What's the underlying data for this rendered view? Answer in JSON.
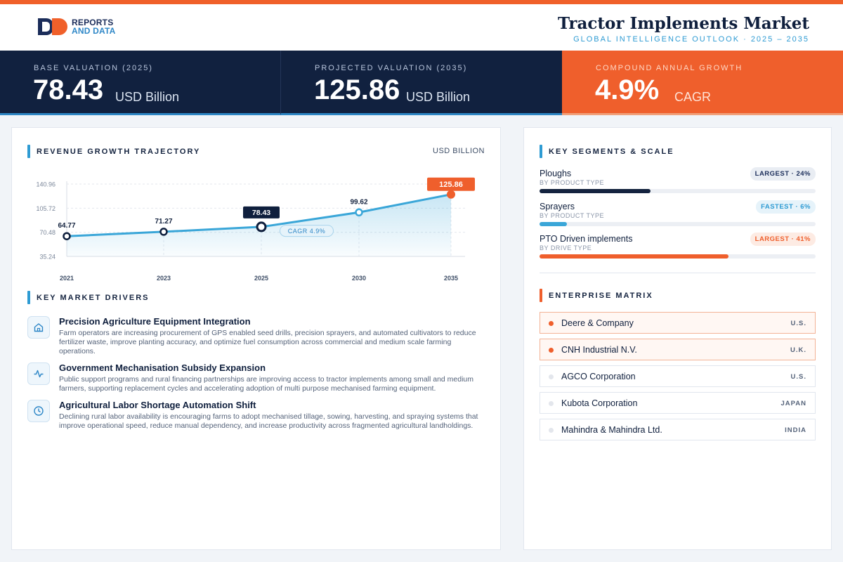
{
  "brand": {
    "line1": "REPORTS",
    "line2": "AND DATA"
  },
  "header": {
    "title": "Tractor Implements Market",
    "subtitle": "GLOBAL INTELLIGENCE OUTLOOK  ·  2025 – 2035"
  },
  "kpis": [
    {
      "label": "BASE VALUATION (2025)",
      "value": "78.43",
      "unit": "USD Billion"
    },
    {
      "label": "PROJECTED VALUATION (2035)",
      "value": "125.86",
      "unit": "USD Billion"
    },
    {
      "label": "COMPOUND ANNUAL GROWTH",
      "value": "4.9%",
      "unit": "CAGR"
    }
  ],
  "revenue": {
    "title": "REVENUE GROWTH TRAJECTORY",
    "unit_label": "USD BILLION"
  },
  "chart_data": {
    "type": "area",
    "categories": [
      "2021",
      "2023",
      "2025",
      "2030",
      "2035"
    ],
    "values": [
      64.77,
      71.27,
      78.43,
      99.62,
      125.86
    ],
    "data_labels": [
      "64.77",
      "71.27",
      "78.43",
      "99.62",
      "125.86"
    ],
    "y_ticks": [
      "140.96",
      "105.72",
      "70.48",
      "35.24"
    ],
    "ylim": [
      35.24,
      140.96
    ],
    "annotation": "CAGR 4.9%",
    "highlight": {
      "2025": "navy",
      "2035": "orange"
    },
    "grid": true,
    "colors": {
      "line": "#3aa6d8",
      "highlight_base": "#0f1f3d",
      "highlight_end": "#ef5f2c"
    }
  },
  "drivers": {
    "title": "KEY MARKET DRIVERS",
    "items": [
      {
        "icon": "home-icon",
        "title": "Precision Agriculture Equipment Integration",
        "desc": "Farm operators are increasing procurement of GPS enabled seed drills, precision sprayers, and automated cultivators to reduce fertilizer waste, improve planting accuracy, and optimize fuel consumption across commercial and medium scale farming operations."
      },
      {
        "icon": "activity-icon",
        "title": "Government Mechanisation Subsidy Expansion",
        "desc": "Public support programs and rural financing partnerships are improving access to tractor implements among small and medium farmers, supporting replacement cycles and accelerating adoption of multi purpose mechanised farming equipment."
      },
      {
        "icon": "clock-icon",
        "title": "Agricultural Labor Shortage Automation Shift",
        "desc": "Declining rural labor availability is encouraging farms to adopt mechanised tillage, sowing, harvesting, and spraying systems that improve operational speed, reduce manual dependency, and increase productivity across fragmented agricultural landholdings."
      }
    ]
  },
  "segments": {
    "title": "KEY SEGMENTS & SCALE",
    "items": [
      {
        "name": "Ploughs",
        "sub": "BY PRODUCT TYPE",
        "badge": "LARGEST · 24%",
        "share": 0.24,
        "color": "#14233f"
      },
      {
        "name": "Sprayers",
        "sub": "BY PRODUCT TYPE",
        "badge": "FASTEST · 6%",
        "share": 0.06,
        "color": "#3aa6d8"
      },
      {
        "name": "PTO Driven implements",
        "sub": "BY DRIVE TYPE",
        "badge": "LARGEST · 41%",
        "share": 0.41,
        "color": "#ef5f2c"
      }
    ]
  },
  "enterprise": {
    "title": "ENTERPRISE MATRIX",
    "items": [
      {
        "name": "Deere & Company",
        "country": "U.S.",
        "highlighted": true
      },
      {
        "name": "CNH Industrial N.V.",
        "country": "U.K.",
        "highlighted": true
      },
      {
        "name": "AGCO Corporation",
        "country": "U.S.",
        "highlighted": false
      },
      {
        "name": "Kubota Corporation",
        "country": "JAPAN",
        "highlighted": false
      },
      {
        "name": "Mahindra & Mahindra Ltd.",
        "country": "INDIA",
        "highlighted": false
      }
    ]
  }
}
